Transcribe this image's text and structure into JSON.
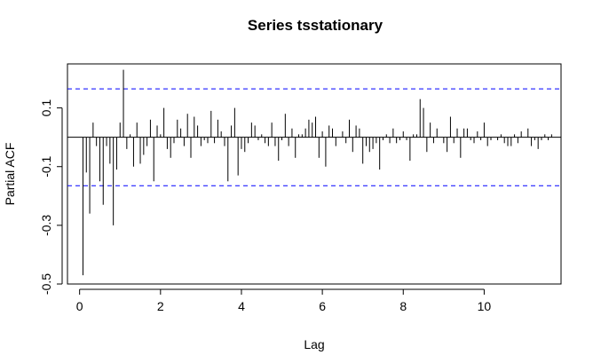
{
  "chart_data": {
    "type": "bar",
    "title": "Series  tsstationary",
    "xlabel": "Lag",
    "ylabel": "Partial ACF",
    "xlim": [
      -0.3,
      11.9
    ],
    "ylim": [
      -0.5,
      0.25
    ],
    "xticks": [
      "0",
      "2",
      "4",
      "6",
      "8",
      "10"
    ],
    "yticks": [
      "-0.5",
      "-0.3",
      "-0.1",
      "0.1"
    ],
    "confidence_limit": 0.165,
    "colors": {
      "bars": "#000000",
      "confidence": "#0000ff",
      "axes": "#000000"
    },
    "lag_step": 0.0833333,
    "series": [
      {
        "values": [
          -0.47,
          -0.12,
          -0.26,
          0.05,
          -0.03,
          -0.15,
          -0.23,
          -0.03,
          -0.09,
          -0.3,
          -0.11,
          0.05,
          0.23,
          -0.04,
          0.01,
          -0.1,
          0.05,
          -0.09,
          -0.06,
          -0.03,
          0.06,
          -0.15,
          0.04,
          0.01,
          0.1,
          -0.04,
          -0.07,
          -0.02,
          0.06,
          0.03,
          -0.03,
          0.08,
          -0.07,
          0.07,
          0.04,
          -0.03,
          -0.01,
          -0.02,
          0.09,
          -0.02,
          0.06,
          0.02,
          -0.03,
          -0.15,
          0.04,
          0.1,
          -0.13,
          -0.04,
          -0.05,
          -0.02,
          0.05,
          0.04,
          -0.01,
          0.01,
          -0.02,
          -0.03,
          0.05,
          -0.03,
          -0.08,
          -0.01,
          0.08,
          -0.03,
          0.03,
          -0.07,
          0.01,
          0.01,
          0.03,
          0.06,
          0.05,
          0.07,
          -0.07,
          0.02,
          -0.1,
          0.04,
          0.03,
          -0.03,
          0.0,
          0.02,
          -0.02,
          0.06,
          -0.05,
          0.04,
          0.03,
          -0.09,
          -0.03,
          -0.05,
          -0.04,
          -0.02,
          -0.11,
          -0.01,
          0.01,
          -0.02,
          0.03,
          -0.02,
          -0.01,
          0.02,
          -0.01,
          -0.08,
          0.01,
          0.01,
          0.13,
          0.1,
          -0.05,
          0.05,
          -0.02,
          0.03,
          0.0,
          -0.02,
          -0.05,
          0.07,
          -0.02,
          0.03,
          -0.07,
          0.03,
          0.03,
          -0.01,
          -0.02,
          0.02,
          -0.01,
          0.05,
          -0.03,
          -0.01,
          0.0,
          -0.01,
          0.01,
          -0.02,
          -0.03,
          -0.03,
          0.01,
          -0.02,
          0.02,
          0.0,
          0.03,
          -0.03,
          -0.01,
          -0.04,
          -0.01,
          0.01,
          -0.01,
          0.01
        ]
      }
    ]
  }
}
